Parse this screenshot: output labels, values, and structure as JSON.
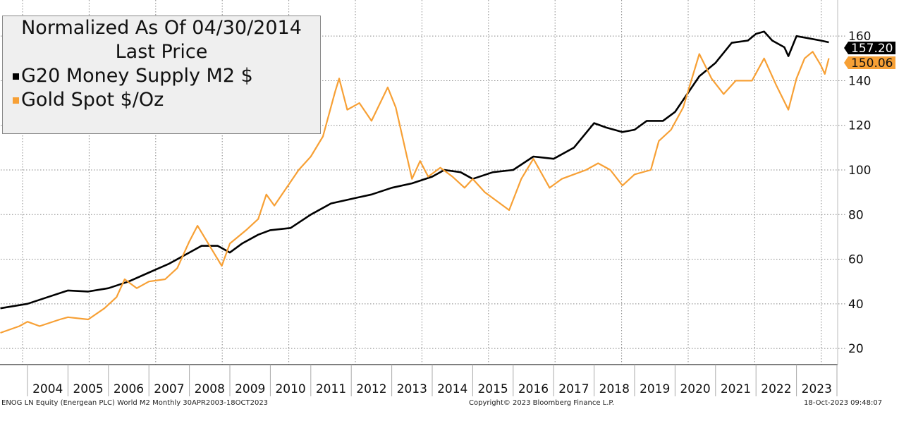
{
  "legend": {
    "title": "Normalized As Of 04/30/2014",
    "subtitle": "Last Price"
  },
  "footer": {
    "left": "ENOG LN Equity (Energean PLC) World M2  Monthly 30APR2003-18OCT2023",
    "center": "Copyright© 2023 Bloomberg Finance L.P.",
    "right": "18-Oct-2023 09:48:07"
  },
  "chart_data": {
    "type": "line",
    "title": "Normalized As Of 04/30/2014 Last Price",
    "xlim": [
      2003.33,
      2023.9
    ],
    "ylim": [
      10,
      167
    ],
    "yticks": [
      20,
      40,
      60,
      80,
      100,
      120,
      140,
      160
    ],
    "xtick_labels": [
      "2004",
      "2005",
      "2006",
      "2007",
      "2008",
      "2009",
      "2010",
      "2011",
      "2012",
      "2013",
      "2014",
      "2015",
      "2016",
      "2017",
      "2018",
      "2019",
      "2020",
      "2021",
      "2022",
      "2023"
    ],
    "grid": true,
    "legend_placement": "top-left",
    "series": [
      {
        "name": "G20 Money Supply M2 $",
        "color": "#000000",
        "last": "157.20",
        "x": [
          2003.33,
          2004.0,
          2004.5,
          2005.0,
          2005.5,
          2006.0,
          2006.5,
          2007.0,
          2007.5,
          2008.0,
          2008.3,
          2008.7,
          2009.0,
          2009.3,
          2009.7,
          2010.0,
          2010.5,
          2011.0,
          2011.5,
          2012.0,
          2012.5,
          2013.0,
          2013.5,
          2014.0,
          2014.3,
          2014.7,
          2015.0,
          2015.5,
          2016.0,
          2016.5,
          2017.0,
          2017.5,
          2018.0,
          2018.3,
          2018.7,
          2019.0,
          2019.3,
          2019.7,
          2020.0,
          2020.3,
          2020.6,
          2021.0,
          2021.4,
          2021.8,
          2022.0,
          2022.2,
          2022.4,
          2022.7,
          2022.8,
          2023.0,
          2023.3,
          2023.6,
          2023.8
        ],
        "y": [
          38,
          40,
          43,
          46,
          45.5,
          47,
          50,
          54,
          58,
          63,
          66,
          66,
          63,
          67,
          71,
          73,
          74,
          80,
          85,
          87,
          89,
          92,
          94,
          97,
          100,
          99,
          96,
          99,
          100,
          106,
          105,
          110,
          121,
          119,
          117,
          118,
          122,
          122,
          126,
          134,
          142,
          148,
          157,
          158,
          161,
          162,
          158,
          155,
          151,
          160,
          159,
          158,
          157.2
        ]
      },
      {
        "name": "Gold Spot $/Oz",
        "color": "#f7a035",
        "last": "150.06",
        "x": [
          2003.33,
          2003.8,
          2004.0,
          2004.3,
          2004.8,
          2005.0,
          2005.5,
          2005.9,
          2006.2,
          2006.4,
          2006.7,
          2007.0,
          2007.4,
          2007.7,
          2008.0,
          2008.2,
          2008.5,
          2008.8,
          2009.0,
          2009.4,
          2009.7,
          2009.9,
          2010.1,
          2010.4,
          2010.7,
          2011.0,
          2011.3,
          2011.6,
          2011.7,
          2011.9,
          2012.2,
          2012.5,
          2012.9,
          2013.1,
          2013.3,
          2013.5,
          2013.7,
          2013.9,
          2014.2,
          2014.5,
          2014.8,
          2015.0,
          2015.3,
          2015.6,
          2015.9,
          2016.2,
          2016.5,
          2016.9,
          2017.2,
          2017.5,
          2017.8,
          2018.1,
          2018.4,
          2018.7,
          2019.0,
          2019.4,
          2019.6,
          2019.9,
          2020.2,
          2020.6,
          2020.9,
          2021.2,
          2021.5,
          2021.9,
          2022.2,
          2022.5,
          2022.8,
          2023.0,
          2023.2,
          2023.4,
          2023.6,
          2023.7,
          2023.8
        ],
        "y": [
          27,
          30,
          32,
          30,
          33,
          34,
          33,
          38,
          43,
          51,
          47,
          50,
          51,
          56,
          68,
          75,
          66,
          57,
          67,
          73,
          78,
          89,
          84,
          92,
          100,
          106,
          115,
          135,
          141,
          127,
          130,
          122,
          137,
          128,
          112,
          96,
          104,
          97,
          101,
          97,
          92,
          96,
          90,
          86,
          82,
          96,
          105,
          92,
          96,
          98,
          100,
          103,
          100,
          93,
          98,
          100,
          113,
          118,
          128,
          152,
          141,
          134,
          140,
          140,
          150,
          138,
          127,
          141,
          150,
          153,
          147,
          143,
          150.06
        ]
      }
    ]
  }
}
